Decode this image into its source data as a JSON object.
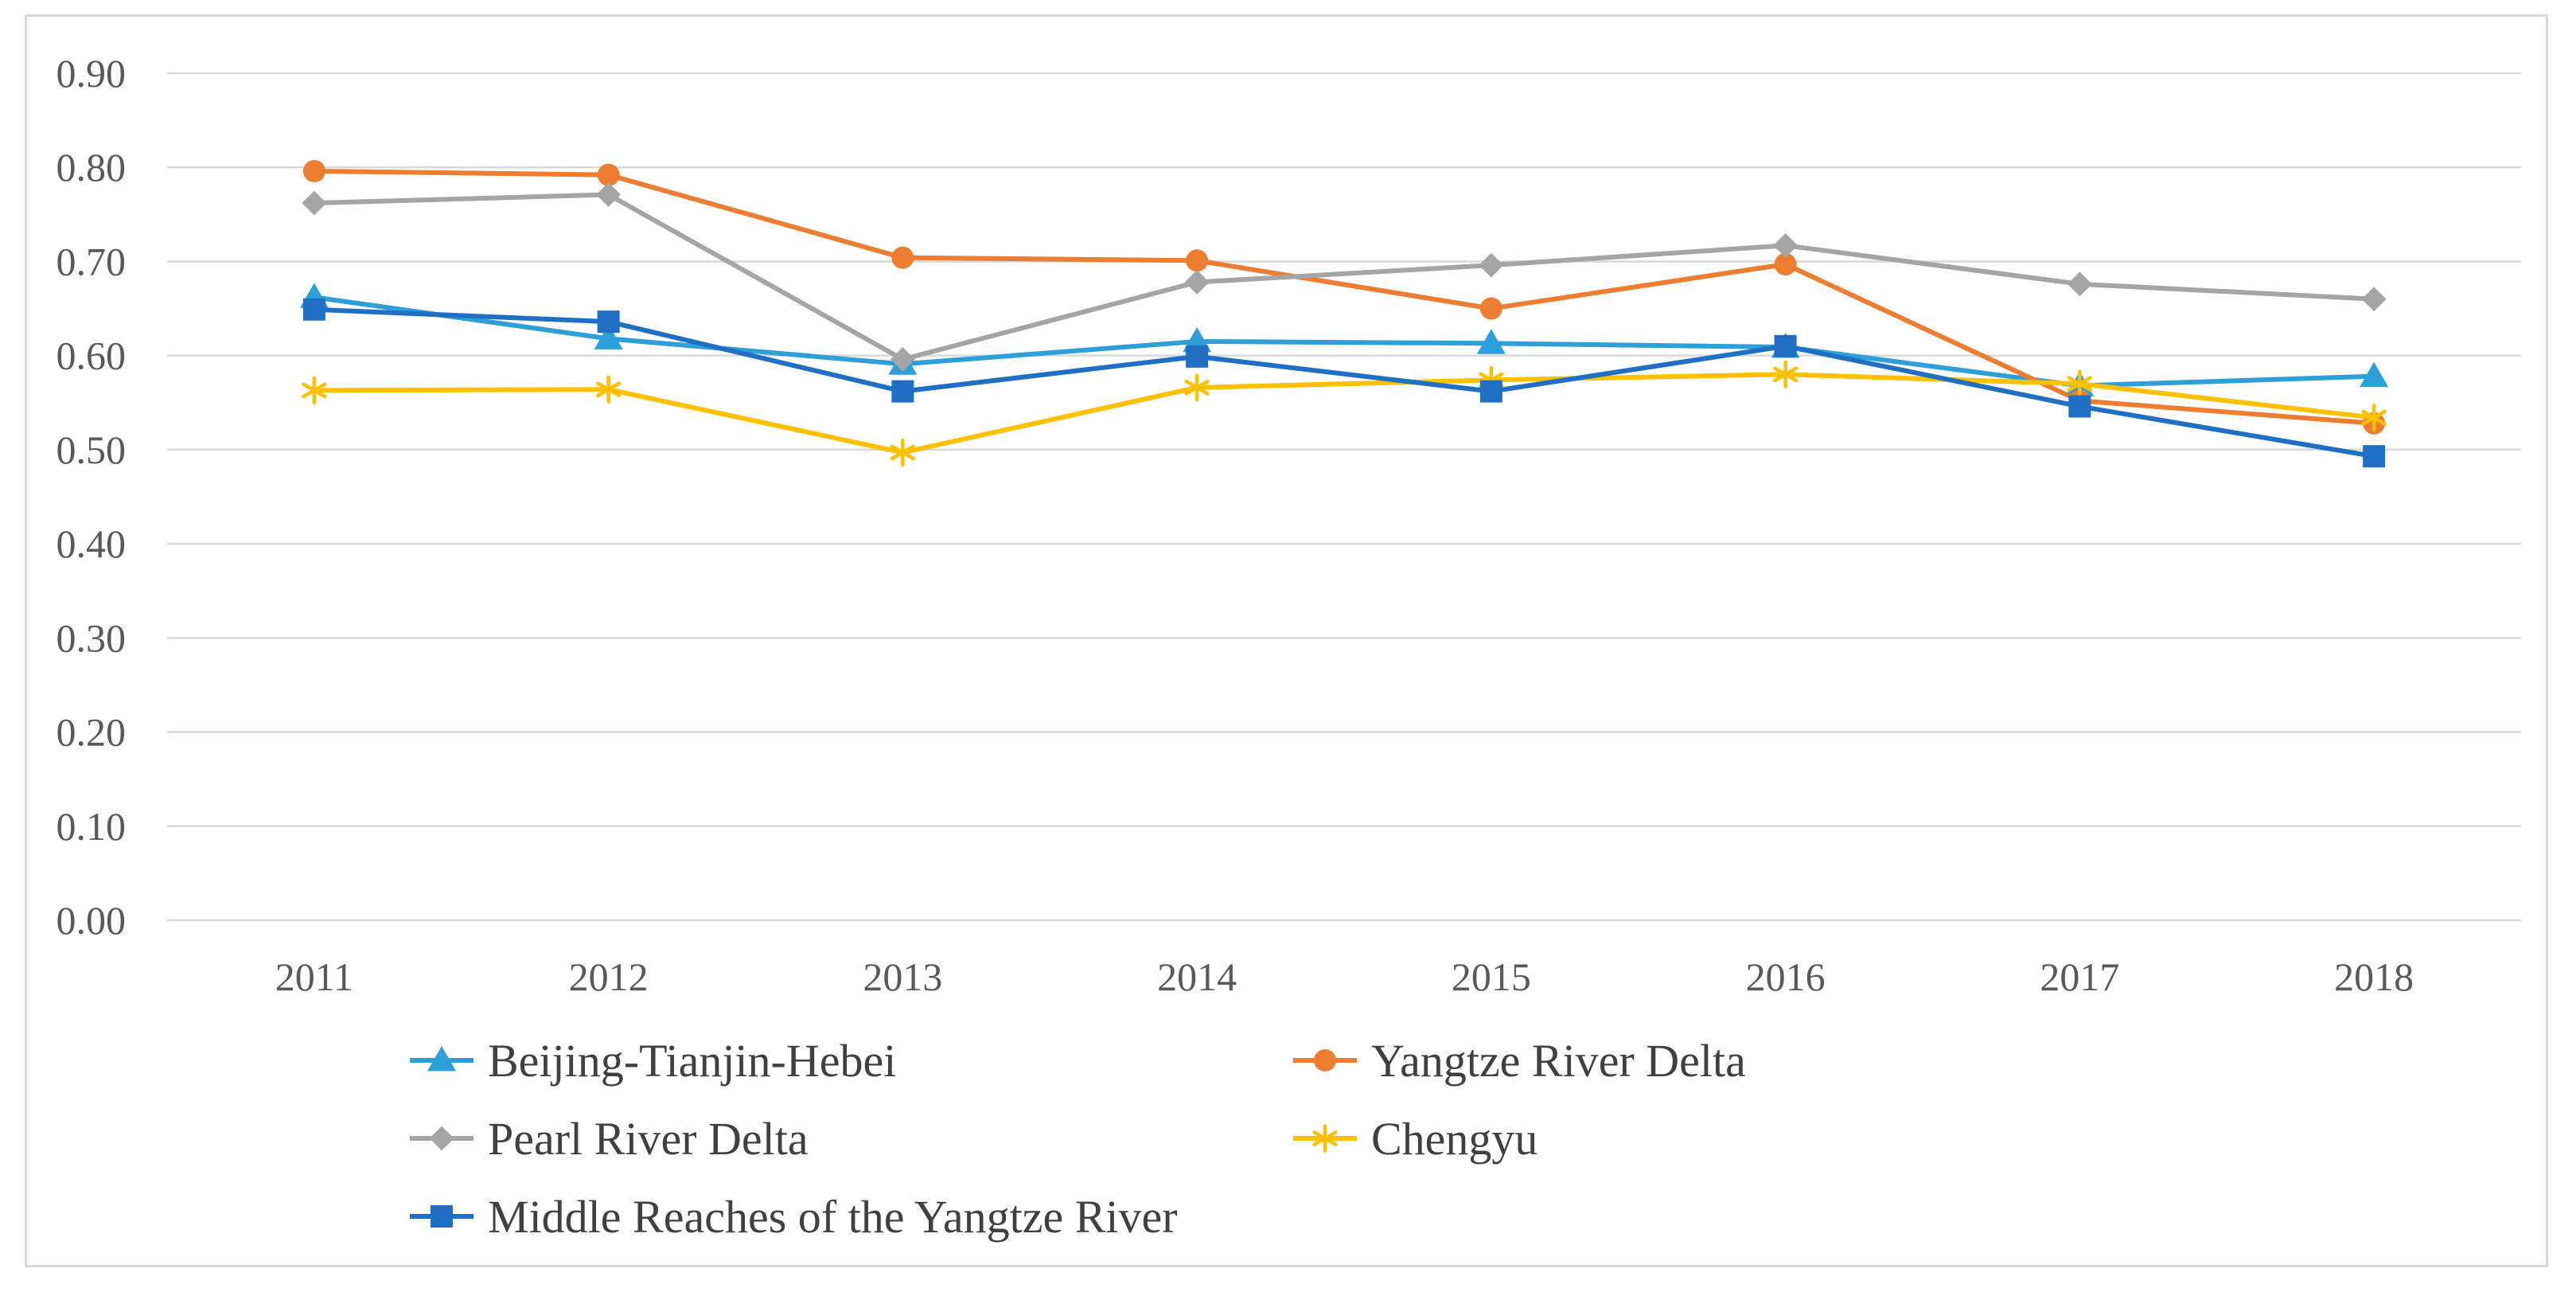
{
  "chart_data": {
    "type": "line",
    "title": "",
    "xlabel": "",
    "ylabel": "",
    "categories": [
      "2011",
      "2012",
      "2013",
      "2014",
      "2015",
      "2016",
      "2017",
      "2018"
    ],
    "ylim": [
      0,
      0.9
    ],
    "yticks": [
      "0.00",
      "0.10",
      "0.20",
      "0.30",
      "0.40",
      "0.50",
      "0.60",
      "0.70",
      "0.80",
      "0.90"
    ],
    "grid": true,
    "legend_position": "bottom",
    "series": [
      {
        "name": "Beijing-Tianjin-Hebei",
        "color": "#2e9fd8",
        "marker": "triangle",
        "values": [
          0.662,
          0.618,
          0.591,
          0.615,
          0.613,
          0.609,
          0.568,
          0.578
        ]
      },
      {
        "name": "Yangtze River Delta",
        "color": "#ed7d31",
        "marker": "circle",
        "values": [
          0.796,
          0.792,
          0.704,
          0.701,
          0.65,
          0.697,
          0.552,
          0.528
        ]
      },
      {
        "name": "Pearl River Delta",
        "color": "#a5a5a5",
        "marker": "diamond",
        "values": [
          0.762,
          0.771,
          0.596,
          0.678,
          0.696,
          0.717,
          0.676,
          0.66
        ]
      },
      {
        "name": "Chengyu",
        "color": "#ffc000",
        "marker": "asterisk",
        "values": [
          0.563,
          0.564,
          0.497,
          0.566,
          0.574,
          0.58,
          0.57,
          0.534
        ]
      },
      {
        "name": "Middle Reaches of the Yangtze River",
        "color": "#1f6fc4",
        "marker": "square",
        "values": [
          0.649,
          0.636,
          0.562,
          0.599,
          0.562,
          0.61,
          0.546,
          0.493
        ]
      }
    ]
  },
  "colors": {
    "gridline": "#d9d9d9",
    "axis_text": "#595959",
    "legend_text": "#404040",
    "frame": "#d9d9d9"
  }
}
